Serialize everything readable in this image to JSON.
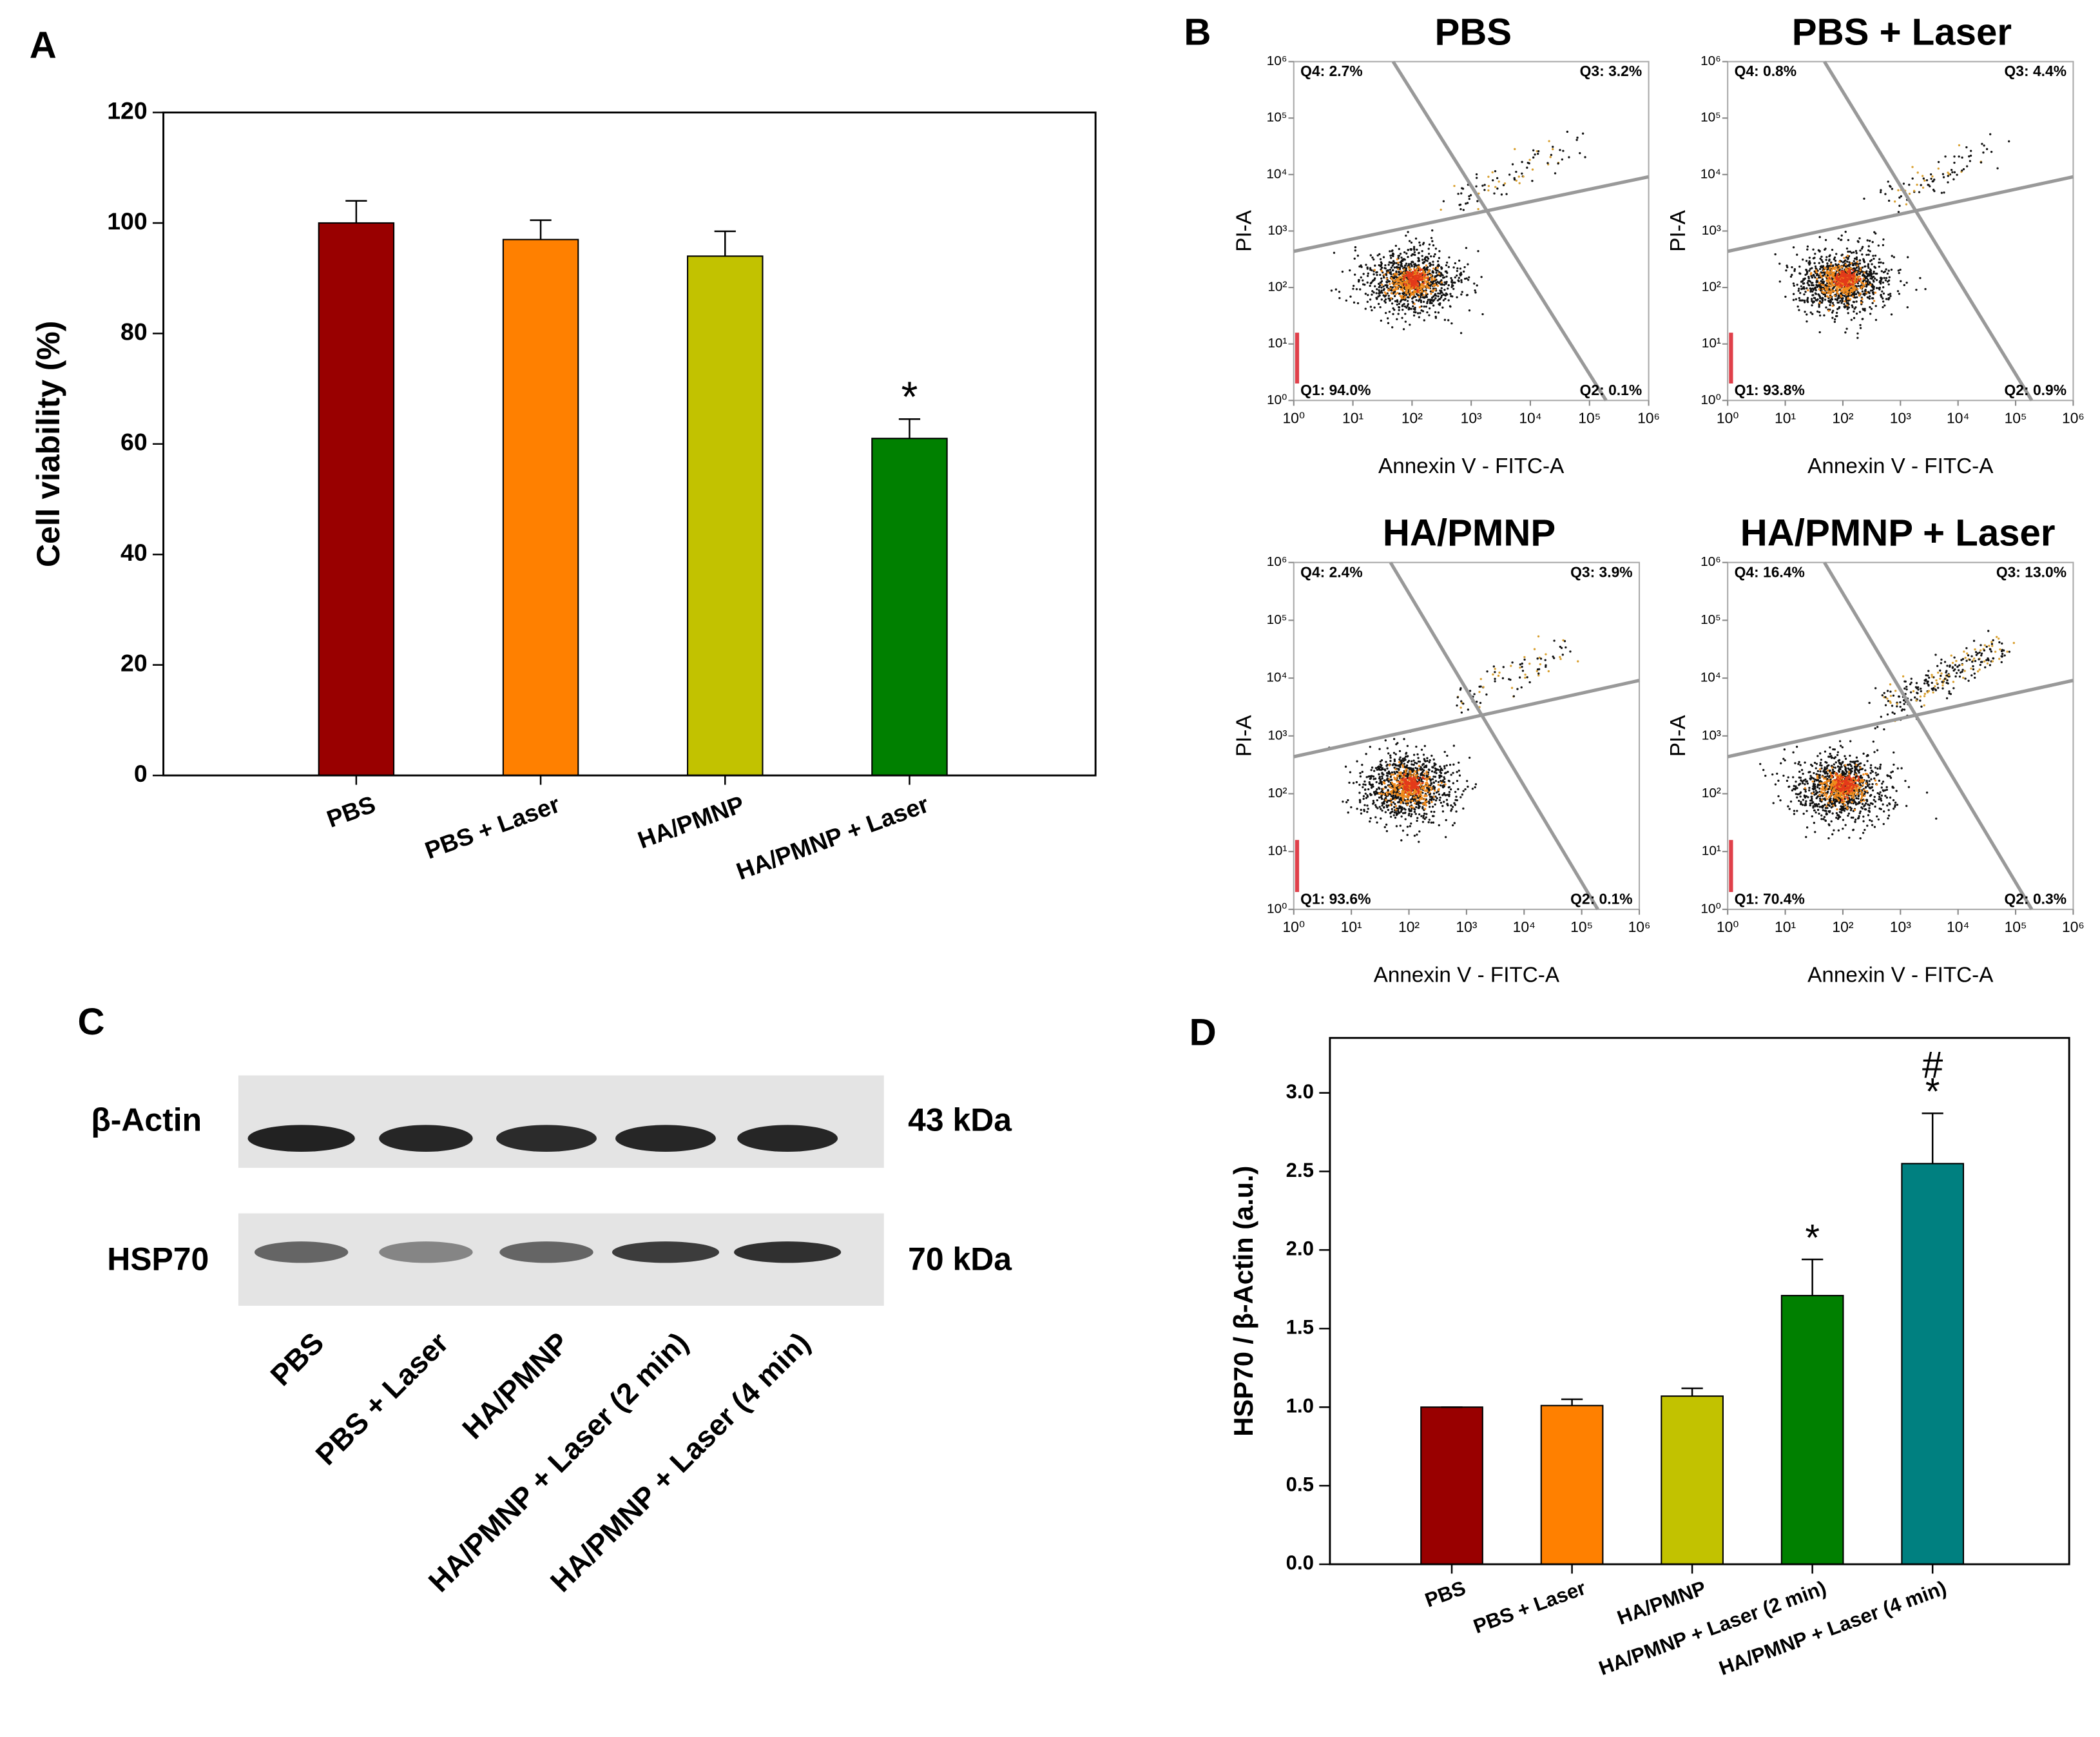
{
  "chart_data": [
    {
      "type": "bar",
      "panel": "A",
      "ylabel": "Cell viability (%)",
      "categories": [
        "PBS",
        "PBS + Laser",
        "HA/PMNP",
        "HA/PMNP + Laser"
      ],
      "values": [
        100,
        97,
        94,
        61
      ],
      "errors": [
        4,
        3.5,
        4.5,
        3.5
      ],
      "colors": [
        "#990000",
        "#ff8000",
        "#c2c200",
        "#008000"
      ],
      "value_annotations": [
        null,
        null,
        null,
        [
          "*"
        ]
      ],
      "ylim": [
        0,
        120
      ],
      "yticks": [
        0,
        20,
        40,
        60,
        80,
        100,
        120
      ]
    },
    {
      "type": "flow",
      "panel": "B",
      "title": "PBS",
      "xlabel": "Annexin V - FITC-A",
      "ylabel": "PI-A",
      "quadrant_labels": [
        "Q1: 94.0%",
        "Q2: 0.1%",
        "Q3: 3.2%",
        "Q4: 2.7%"
      ],
      "xscale": "log",
      "yscale": "log",
      "xlim": [
        1,
        1000000
      ],
      "ylim": [
        1,
        1000000
      ],
      "xticks": [
        {
          "value": 1,
          "label": "10⁰"
        },
        {
          "value": 10,
          "label": "10¹"
        },
        {
          "value": 100,
          "label": "10²"
        },
        {
          "value": 1000,
          "label": "10³"
        },
        {
          "value": 10000,
          "label": "10⁴"
        },
        {
          "value": 100000,
          "label": "10⁵"
        },
        {
          "value": 1000000,
          "label": "10⁶"
        }
      ],
      "yticks": [
        {
          "value": 1,
          "label": "10⁰"
        },
        {
          "value": 10,
          "label": "10¹"
        },
        {
          "value": 100,
          "label": "10²"
        },
        {
          "value": 1000,
          "label": "10³"
        },
        {
          "value": 10000,
          "label": "10⁴"
        },
        {
          "value": 100000,
          "label": "10⁵"
        },
        {
          "value": 1000000,
          "label": "10⁶"
        }
      ]
    },
    {
      "type": "flow",
      "title": "PBS + Laser",
      "xlabel": "Annexin V - FITC-A",
      "ylabel": "PI-A",
      "quadrant_labels": [
        "Q1: 93.8%",
        "Q2: 0.9%",
        "Q3: 4.4%",
        "Q4: 0.8%"
      ],
      "xscale": "log",
      "yscale": "log",
      "xlim": [
        1,
        1000000
      ],
      "ylim": [
        1,
        1000000
      ],
      "xticks": [
        {
          "value": 1,
          "label": "10⁰"
        },
        {
          "value": 10,
          "label": "10¹"
        },
        {
          "value": 100,
          "label": "10²"
        },
        {
          "value": 1000,
          "label": "10³"
        },
        {
          "value": 10000,
          "label": "10⁴"
        },
        {
          "value": 100000,
          "label": "10⁵"
        },
        {
          "value": 1000000,
          "label": "10⁶"
        }
      ],
      "yticks": [
        {
          "value": 1,
          "label": "10⁰"
        },
        {
          "value": 10,
          "label": "10¹"
        },
        {
          "value": 100,
          "label": "10²"
        },
        {
          "value": 1000,
          "label": "10³"
        },
        {
          "value": 10000,
          "label": "10⁴"
        },
        {
          "value": 100000,
          "label": "10⁵"
        },
        {
          "value": 1000000,
          "label": "10⁶"
        }
      ]
    },
    {
      "type": "flow",
      "title": "HA/PMNP",
      "xlabel": "Annexin V - FITC-A",
      "ylabel": "PI-A",
      "quadrant_labels": [
        "Q1: 93.6%",
        "Q2: 0.1%",
        "Q3: 3.9%",
        "Q4: 2.4%"
      ],
      "xscale": "log",
      "yscale": "log",
      "xlim": [
        1,
        1000000
      ],
      "ylim": [
        1,
        1000000
      ],
      "xticks": [
        {
          "value": 1,
          "label": "10⁰"
        },
        {
          "value": 10,
          "label": "10¹"
        },
        {
          "value": 100,
          "label": "10²"
        },
        {
          "value": 1000,
          "label": "10³"
        },
        {
          "value": 10000,
          "label": "10⁴"
        },
        {
          "value": 100000,
          "label": "10⁵"
        },
        {
          "value": 1000000,
          "label": "10⁶"
        }
      ],
      "yticks": [
        {
          "value": 1,
          "label": "10⁰"
        },
        {
          "value": 10,
          "label": "10¹"
        },
        {
          "value": 100,
          "label": "10²"
        },
        {
          "value": 1000,
          "label": "10³"
        },
        {
          "value": 10000,
          "label": "10⁴"
        },
        {
          "value": 100000,
          "label": "10⁵"
        },
        {
          "value": 1000000,
          "label": "10⁶"
        }
      ]
    },
    {
      "type": "flow",
      "title": "HA/PMNP + Laser",
      "xlabel": "Annexin V - FITC-A",
      "ylabel": "PI-A",
      "quadrant_labels": [
        "Q1: 70.4%",
        "Q2: 0.3%",
        "Q3: 13.0%",
        "Q4: 16.4%"
      ],
      "xscale": "log",
      "yscale": "log",
      "xlim": [
        1,
        1000000
      ],
      "ylim": [
        1,
        1000000
      ],
      "xticks": [
        {
          "value": 1,
          "label": "10⁰"
        },
        {
          "value": 10,
          "label": "10¹"
        },
        {
          "value": 100,
          "label": "10²"
        },
        {
          "value": 1000,
          "label": "10³"
        },
        {
          "value": 10000,
          "label": "10⁴"
        },
        {
          "value": 100000,
          "label": "10⁵"
        },
        {
          "value": 1000000,
          "label": "10⁶"
        }
      ],
      "yticks": [
        {
          "value": 1,
          "label": "10⁰"
        },
        {
          "value": 10,
          "label": "10¹"
        },
        {
          "value": 100,
          "label": "10²"
        },
        {
          "value": 1000,
          "label": "10³"
        },
        {
          "value": 10000,
          "label": "10⁴"
        },
        {
          "value": 100000,
          "label": "10⁵"
        },
        {
          "value": 1000000,
          "label": "10⁶"
        }
      ]
    },
    {
      "type": "bar",
      "panel": "D",
      "ylabel": "HSP70 / β-Actin (a.u.)",
      "categories": [
        "PBS",
        "PBS + Laser",
        "HA/PMNP",
        "HA/PMNP + Laser (2 min)",
        "HA/PMNP + Laser (4 min)"
      ],
      "values": [
        1.0,
        1.01,
        1.07,
        1.71,
        2.55
      ],
      "errors": [
        0,
        0.04,
        0.05,
        0.23,
        0.32
      ],
      "colors": [
        "#990000",
        "#ff8000",
        "#c2c200",
        "#008000",
        "#008080"
      ],
      "value_annotations": [
        null,
        null,
        null,
        [
          "*"
        ],
        [
          "#",
          "*"
        ]
      ],
      "ylim": [
        0,
        3.35
      ],
      "yticks": [
        {
          "value": 0,
          "label": "0.0"
        },
        {
          "value": 0.5,
          "label": "0.5"
        },
        {
          "value": 1,
          "label": "1.0"
        },
        {
          "value": 1.5,
          "label": "1.5"
        },
        {
          "value": 2,
          "label": "2.0"
        },
        {
          "value": 2.5,
          "label": "2.5"
        },
        {
          "value": 3,
          "label": "3.0"
        }
      ]
    }
  ],
  "blot": {
    "panel": "C",
    "rows": [
      {
        "name": "β-Actin",
        "size": "43 kDa"
      },
      {
        "name": "HSP70",
        "size": "70 kDa"
      }
    ],
    "lanes": [
      "PBS",
      "PBS + Laser",
      "HA/PMNP",
      "HA/PMNP + Laser (2 min)",
      "HA/PMNP + Laser (4 min)"
    ]
  }
}
